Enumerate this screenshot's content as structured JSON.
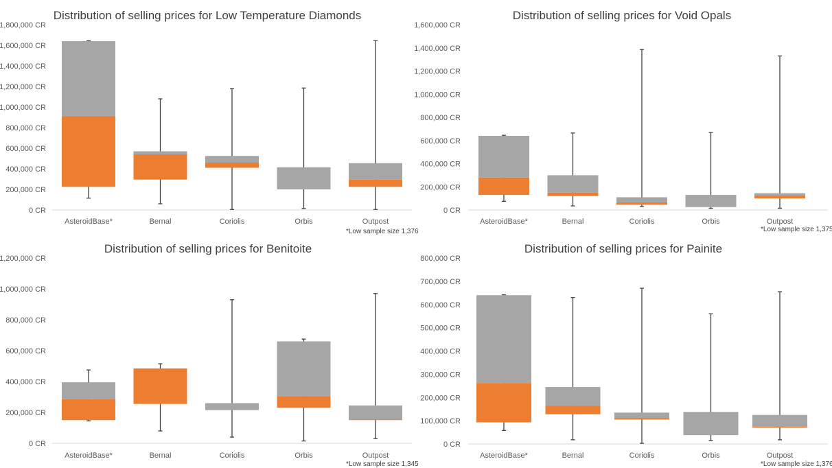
{
  "chart_data": [
    {
      "type": "box",
      "title": "Distribution of selling prices for Low Temperature Diamonds",
      "categories": [
        "AsteroidBase*",
        "Bernal",
        "Coriolis",
        "Orbis",
        "Outpost"
      ],
      "ylim": [
        0,
        1800000
      ],
      "yticks": [
        0,
        200000,
        400000,
        600000,
        800000,
        1000000,
        1200000,
        1400000,
        1600000,
        1800000
      ],
      "tick_labels": [
        "0 CR",
        "200,000 CR",
        "400,000 CR",
        "600,000 CR",
        "800,000 CR",
        "1,000,000 CR",
        "1,200,000 CR",
        "1,400,000 CR",
        "1,600,000 CR",
        "1,800,000 CR"
      ],
      "note": "*Low sample size 1,376",
      "series": [
        {
          "min": 115000,
          "q1": 225000,
          "median": 910000,
          "q3": 1640000,
          "max": 1645000
        },
        {
          "min": 60000,
          "q1": 295000,
          "median": 540000,
          "q3": 570000,
          "max": 1080000
        },
        {
          "min": 5000,
          "q1": 410000,
          "median": 460000,
          "q3": 525000,
          "max": 1180000
        },
        {
          "min": 15000,
          "q1": 200000,
          "median": 200000,
          "q3": 415000,
          "max": 1185000
        },
        {
          "min": 5000,
          "q1": 225000,
          "median": 295000,
          "q3": 455000,
          "max": 1645000
        }
      ],
      "colors": {
        "lower": "#ed7d31",
        "upper": "#a6a6a6",
        "whisker": "#404040"
      },
      "grid": false
    },
    {
      "type": "box",
      "title": "Distribution of selling prices for Void Opals",
      "categories": [
        "AsteroidBase*",
        "Bernal",
        "Coriolis",
        "Orbis",
        "Outpost"
      ],
      "ylim": [
        0,
        1600000
      ],
      "yticks": [
        0,
        200000,
        400000,
        600000,
        800000,
        1000000,
        1200000,
        1400000,
        1600000
      ],
      "tick_labels": [
        "0 CR",
        "200,000 CR",
        "400,000 CR",
        "600,000 CR",
        "800,000 CR",
        "1,000,000 CR",
        "1,200,000 CR",
        "1,400,000 CR",
        "1,600,000 CR"
      ],
      "note": "*Low sample size 1,375",
      "series": [
        {
          "min": 75000,
          "q1": 130000,
          "median": 280000,
          "q3": 640000,
          "max": 645000
        },
        {
          "min": 35000,
          "q1": 120000,
          "median": 150000,
          "q3": 300000,
          "max": 665000
        },
        {
          "min": 30000,
          "q1": 45000,
          "median": 65000,
          "q3": 110000,
          "max": 1385000
        },
        {
          "min": 15000,
          "q1": 25000,
          "median": 25000,
          "q3": 130000,
          "max": 670000
        },
        {
          "min": 15000,
          "q1": 100000,
          "median": 125000,
          "q3": 145000,
          "max": 1330000
        }
      ],
      "colors": {
        "lower": "#ed7d31",
        "upper": "#a6a6a6",
        "whisker": "#404040"
      },
      "grid": false
    },
    {
      "type": "box",
      "title": "Distribution of selling prices for Benitoite",
      "categories": [
        "AsteroidBase*",
        "Bernal",
        "Coriolis",
        "Orbis",
        "Outpost"
      ],
      "ylim": [
        0,
        1200000
      ],
      "yticks": [
        0,
        200000,
        400000,
        600000,
        800000,
        1000000,
        1200000
      ],
      "tick_labels": [
        "0 CR",
        "200,000 CR",
        "400,000 CR",
        "600,000 CR",
        "800,000 CR",
        "1,000,000 CR",
        "1,200,000 CR"
      ],
      "note": "*Low sample size 1,345",
      "series": [
        {
          "min": 145000,
          "q1": 150000,
          "median": 285000,
          "q3": 395000,
          "max": 475000
        },
        {
          "min": 80000,
          "q1": 255000,
          "median": 485000,
          "q3": 485000,
          "max": 515000
        },
        {
          "min": 40000,
          "q1": 215000,
          "median": 215000,
          "q3": 260000,
          "max": 930000
        },
        {
          "min": 15000,
          "q1": 230000,
          "median": 305000,
          "q3": 660000,
          "max": 675000
        },
        {
          "min": 30000,
          "q1": 150000,
          "median": 155000,
          "q3": 245000,
          "max": 970000
        }
      ],
      "colors": {
        "lower": "#ed7d31",
        "upper": "#a6a6a6",
        "whisker": "#404040"
      },
      "grid": false
    },
    {
      "type": "box",
      "title": "Distribution of selling prices for Painite",
      "categories": [
        "AsteroidBase*",
        "Bernal",
        "Coriolis",
        "Orbis",
        "Outpost"
      ],
      "ylim": [
        0,
        800000
      ],
      "yticks": [
        0,
        100000,
        200000,
        300000,
        400000,
        500000,
        600000,
        700000,
        800000
      ],
      "tick_labels": [
        "0 CR",
        "100,000 CR",
        "200,000 CR",
        "300,000 CR",
        "400,000 CR",
        "500,000 CR",
        "600,000 CR",
        "700,000 CR",
        "800,000 CR"
      ],
      "note": "*Low sample size 1,376",
      "series": [
        {
          "min": 58000,
          "q1": 93000,
          "median": 262000,
          "q3": 640000,
          "max": 642000
        },
        {
          "min": 18000,
          "q1": 128000,
          "median": 165000,
          "q3": 245000,
          "max": 630000
        },
        {
          "min": 3000,
          "q1": 105000,
          "median": 112000,
          "q3": 135000,
          "max": 670000
        },
        {
          "min": 15000,
          "q1": 38000,
          "median": 38000,
          "q3": 138000,
          "max": 560000
        },
        {
          "min": 18000,
          "q1": 70000,
          "median": 75000,
          "q3": 125000,
          "max": 655000
        }
      ],
      "colors": {
        "lower": "#ed7d31",
        "upper": "#a6a6a6",
        "whisker": "#404040"
      },
      "grid": false
    }
  ]
}
